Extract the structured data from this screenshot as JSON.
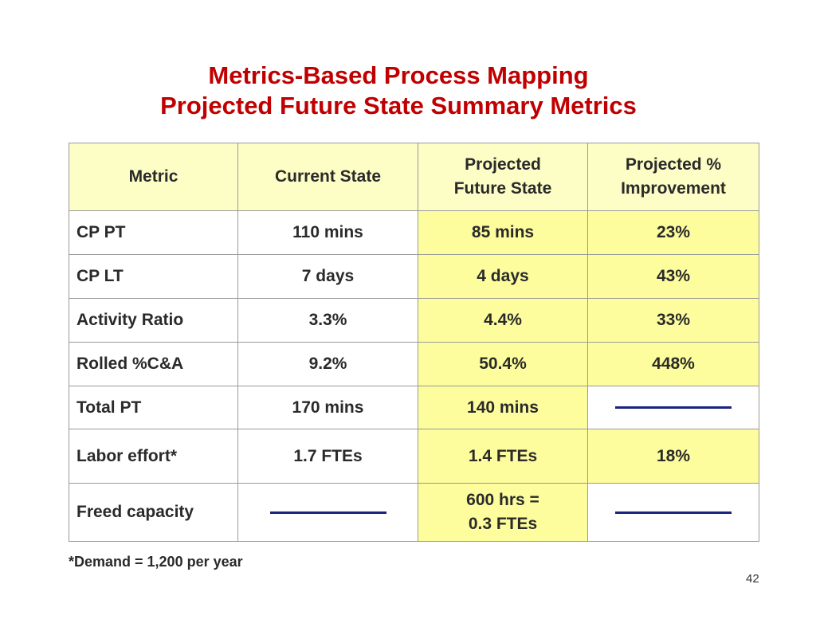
{
  "slide": {
    "title_line1": "Metrics-Based Process Mapping",
    "title_line2": "Projected Future State Summary Metrics",
    "footnote": "*Demand  = 1,200 per year",
    "page_number": "42"
  },
  "table": {
    "headers": {
      "metric": "Metric",
      "current": "Current State",
      "future_line1": "Projected",
      "future_line2": "Future State",
      "improvement_line1": "Projected %",
      "improvement_line2": "Improvement"
    },
    "rows": [
      {
        "metric": "CP PT",
        "current": "110 mins",
        "future": "85 mins",
        "improvement": "23%"
      },
      {
        "metric": "CP LT",
        "current": "7 days",
        "future": "4 days",
        "improvement": "43%"
      },
      {
        "metric": "Activity Ratio",
        "current": "3.3%",
        "future": "4.4%",
        "improvement": "33%"
      },
      {
        "metric": "Rolled %C&A",
        "current": "9.2%",
        "future": "50.4%",
        "improvement": "448%"
      },
      {
        "metric": "Total PT",
        "current": "170 mins",
        "future": "140 mins",
        "improvement": ""
      },
      {
        "metric": "Labor effort*",
        "current": "1.7 FTEs",
        "future": "1.4 FTEs",
        "improvement": "18%"
      },
      {
        "metric": "Freed capacity",
        "current": "",
        "future_line1": "600 hrs =",
        "future_line2": "0.3 FTEs",
        "improvement": ""
      }
    ]
  },
  "colors": {
    "title": "#c00000",
    "header_bg": "#fdfdc6",
    "highlight_bg": "#fdfd9e",
    "dash_line": "#1a237e"
  }
}
